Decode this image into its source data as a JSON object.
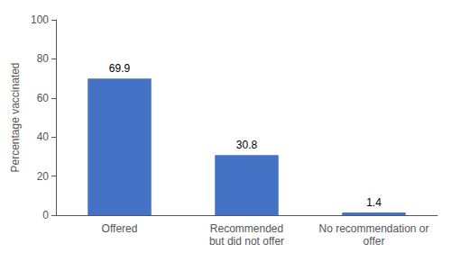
{
  "chart_data": {
    "type": "bar",
    "categories": [
      "Offered",
      "Recommended\nbut did not offer",
      "No recommendation or\noffer"
    ],
    "values": [
      69.9,
      30.8,
      1.4
    ],
    "color": "#4472C4",
    "ylabel": "Percentage vaccinated",
    "ylim": [
      0,
      100
    ],
    "yticks": [
      0,
      20,
      40,
      60,
      80,
      100
    ],
    "grid": false,
    "data_labels": true
  }
}
